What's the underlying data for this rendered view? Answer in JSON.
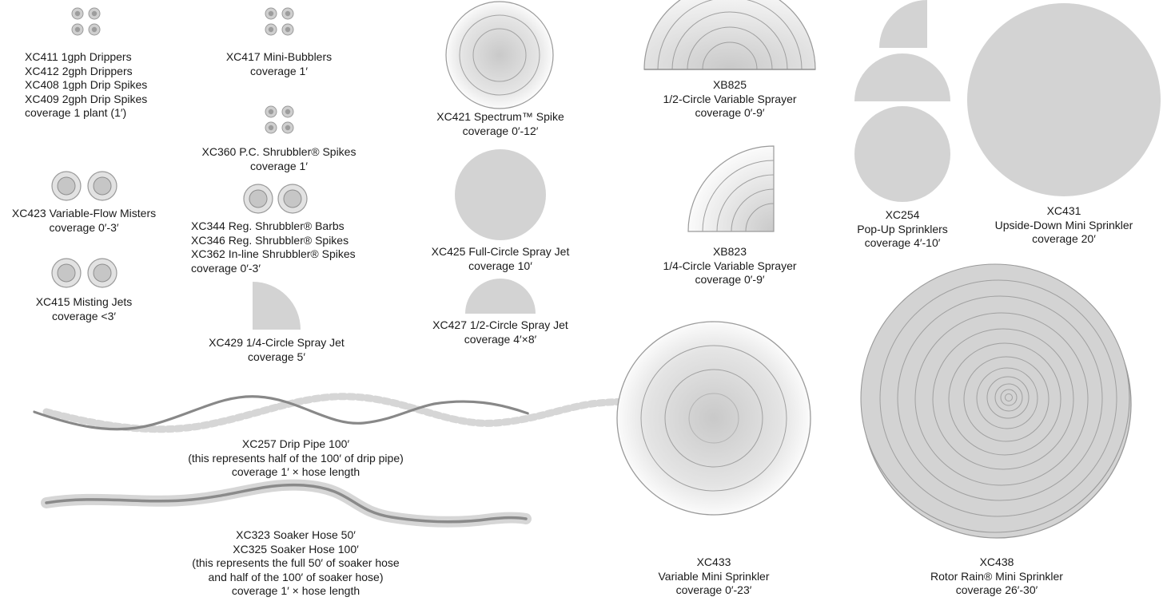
{
  "items": {
    "xc411": {
      "lines": [
        "XC411 1gph Drippers",
        "XC412 2gph Drippers",
        "XC408 1gph Drip Spikes",
        "XC409 2gph Drip Spikes",
        "coverage 1 plant (1′)"
      ]
    },
    "xc417": {
      "lines": [
        "XC417 Mini-Bubblers",
        "coverage 1′"
      ]
    },
    "xc360": {
      "lines": [
        "XC360 P.C. Shrubbler® Spikes",
        "coverage 1′"
      ]
    },
    "xc423": {
      "lines": [
        "XC423 Variable-Flow Misters",
        "coverage 0′-3′"
      ]
    },
    "xc344": {
      "lines": [
        "XC344 Reg. Shrubbler® Barbs",
        "XC346 Reg. Shrubbler® Spikes",
        "XC362 In-line Shrubbler® Spikes",
        "coverage 0′-3′"
      ]
    },
    "xc415": {
      "lines": [
        "XC415  Misting Jets",
        "coverage <3′"
      ]
    },
    "xc429": {
      "lines": [
        "XC429  1/4-Circle Spray Jet",
        "coverage 5′"
      ]
    },
    "xc421": {
      "lines": [
        "XC421 Spectrum™ Spike",
        "coverage 0′-12′"
      ]
    },
    "xc425": {
      "lines": [
        "XC425  Full-Circle Spray Jet",
        "coverage 10′"
      ]
    },
    "xc427": {
      "lines": [
        "XC427  1/2-Circle Spray Jet",
        "coverage 4′×8′"
      ]
    },
    "xb825": {
      "lines": [
        "XB825",
        "1/2-Circle Variable Sprayer",
        "coverage 0′-9′"
      ]
    },
    "xb823": {
      "lines": [
        "XB823",
        "1/4-Circle Variable Sprayer",
        "coverage 0′-9′"
      ]
    },
    "xc254": {
      "lines": [
        "XC254",
        "Pop-Up Sprinklers",
        "coverage 4′-10′"
      ]
    },
    "xc431": {
      "lines": [
        "XC431",
        "Upside-Down Mini Sprinkler",
        "coverage 20′"
      ]
    },
    "xc257": {
      "lines": [
        "XC257  Drip Pipe 100′",
        "(this represents half of the 100′ of drip pipe)",
        "coverage 1′ × hose length"
      ]
    },
    "xc323": {
      "lines": [
        "XC323  Soaker Hose 50′",
        "XC325 Soaker Hose 100′",
        "(this represents the full 50′ of soaker hose",
        "and half of the 100′ of soaker hose)",
        "coverage 1′ × hose length"
      ]
    },
    "xc433": {
      "lines": [
        "XC433",
        "Variable Mini Sprinkler",
        "coverage 0′-23′"
      ]
    },
    "xc438": {
      "lines": [
        "XC438",
        "Rotor Rain® Mini Sprinkler",
        "coverage 26′-30′"
      ]
    }
  },
  "colors": {
    "fill": "#d3d3d3",
    "stroke": "#9a9a9a",
    "dark": "#808080",
    "center": "#c4c4c4"
  }
}
